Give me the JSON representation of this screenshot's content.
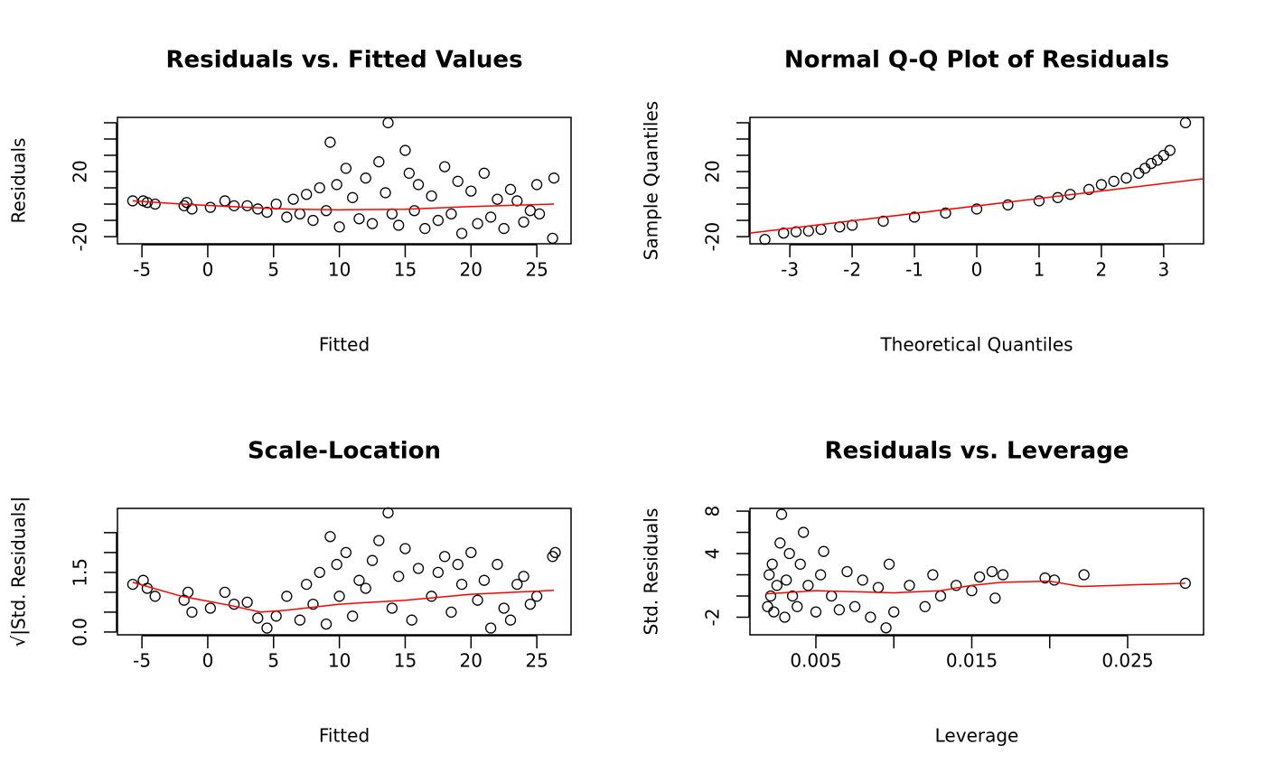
{
  "chart_data": [
    {
      "type": "scatter",
      "title": "Residuals vs. Fitted Values",
      "xlabel": "Fitted",
      "ylabel": "Residuals",
      "xlim": [
        -6.86,
        27.6
      ],
      "ylim": [
        -24.4,
        53.3
      ],
      "xticks": [
        -5,
        0,
        5,
        10,
        15,
        20,
        25
      ],
      "yticks": [
        -20,
        {
          "value": -10,
          "label": null
        },
        {
          "value": 0,
          "label": null
        },
        {
          "value": 10,
          "label": null
        },
        20,
        {
          "value": 30,
          "label": null
        },
        {
          "value": 40,
          "label": null
        },
        {
          "value": 50,
          "label": null
        }
      ],
      "color": "black",
      "x": [
        -5.7,
        -4.9,
        -4.6,
        -4,
        -1.8,
        -1.6,
        -1.2,
        0.2,
        1.3,
        2,
        3,
        3.8,
        4.5,
        5.2,
        6,
        6.5,
        7,
        7.5,
        8,
        8.5,
        9,
        9.3,
        9.8,
        10,
        10.5,
        11,
        11.5,
        12,
        12.5,
        13,
        13.5,
        13.7,
        14,
        14.5,
        15,
        15.3,
        15.7,
        16,
        16.5,
        17,
        17.5,
        18,
        18.5,
        19,
        19.3,
        20,
        20.5,
        21,
        21.5,
        22,
        22.5,
        23,
        23.5,
        24,
        24.5,
        25,
        25.2,
        26.2,
        26.3
      ],
      "values": [
        2,
        2,
        1,
        0,
        -1,
        1,
        -3,
        -2,
        2,
        -1,
        -1,
        -3,
        -5,
        0,
        -8,
        3,
        -6,
        6,
        -10,
        10,
        -4,
        38,
        12,
        -14,
        22,
        4,
        -9,
        16,
        -12,
        26,
        7,
        50,
        -6,
        -13,
        33,
        19,
        -4,
        12,
        -15,
        5,
        -10,
        23,
        -6,
        14,
        -18,
        8,
        -12,
        19,
        -8,
        3,
        -15,
        9,
        2,
        -11,
        -4,
        12,
        -6,
        -21,
        16
      ],
      "line": {
        "color": "red",
        "x": [
          -5.7,
          -2,
          3,
          6,
          10,
          15,
          20,
          26.3
        ],
        "values": [
          2,
          0,
          -2,
          -3,
          -3.5,
          -3.2,
          -1.5,
          0
        ]
      }
    },
    {
      "type": "scatter",
      "title": "Normal Q-Q Plot of Residuals",
      "xlabel": "Theoretical Quantiles",
      "ylabel": "Sample Quantiles",
      "xlim": [
        -3.64,
        3.64
      ],
      "ylim": [
        -24.4,
        53.3
      ],
      "xticks": [
        -3,
        -2,
        -1,
        0,
        1,
        2,
        3
      ],
      "yticks": [
        -20,
        {
          "value": -10,
          "label": null
        },
        {
          "value": 0,
          "label": null
        },
        {
          "value": 10,
          "label": null
        },
        20,
        {
          "value": 30,
          "label": null
        },
        {
          "value": 40,
          "label": null
        },
        {
          "value": 50,
          "label": null
        }
      ],
      "color": "black",
      "x": [
        -3.4,
        -3.1,
        -2.9,
        -2.7,
        -2.5,
        -2.2,
        -2,
        -1.5,
        -1,
        -0.5,
        0,
        0.5,
        1,
        1.3,
        1.5,
        1.8,
        2,
        2.2,
        2.4,
        2.6,
        2.7,
        2.8,
        2.9,
        3,
        3.1,
        3.35
      ],
      "values": [
        -21.7,
        -17.8,
        -17,
        -16.5,
        -15.5,
        -14,
        -13,
        -10.5,
        -8,
        -5.5,
        -3,
        -0.5,
        2,
        4,
        6,
        9,
        12,
        14,
        16,
        19,
        22,
        25,
        27,
        30,
        33,
        50
      ],
      "line": {
        "color": "red",
        "x": [
          -3.64,
          3.64
        ],
        "values": [
          -17.8,
          15.6
        ]
      }
    },
    {
      "type": "scatter",
      "title": "Scale-Location",
      "xlabel": "Fitted",
      "ylabel": "√|Std. Residuals|",
      "xlim": [
        -6.86,
        27.6
      ],
      "ylim": [
        -0.07,
        3.11
      ],
      "xticks": [
        -5,
        0,
        5,
        10,
        15,
        20,
        25
      ],
      "yticks": [
        {
          "value": 0,
          "label": "0.0"
        },
        {
          "value": 0.5,
          "label": null
        },
        {
          "value": 1,
          "label": null
        },
        1.5,
        {
          "value": 2,
          "label": null
        },
        {
          "value": 2.5,
          "label": null
        }
      ],
      "color": "black",
      "x": [
        -5.7,
        -4.9,
        -4.6,
        -4,
        -1.8,
        -1.5,
        -1.2,
        0.2,
        1.3,
        2,
        3,
        3.8,
        4.5,
        5.2,
        6,
        7,
        7.5,
        8,
        8.5,
        9,
        9.3,
        9.8,
        10,
        10.5,
        11,
        11.5,
        12,
        12.5,
        13,
        13.7,
        14,
        14.5,
        15,
        15.5,
        16,
        17,
        17.5,
        18,
        18.5,
        19,
        19.3,
        20,
        20.5,
        21,
        21.5,
        22,
        22.5,
        23,
        23.5,
        24,
        24.5,
        25,
        26.2,
        26.4
      ],
      "values": [
        1.2,
        1.3,
        1.1,
        0.9,
        0.8,
        1,
        0.5,
        0.6,
        1,
        0.7,
        0.75,
        0.35,
        0.1,
        0.4,
        0.9,
        0.3,
        1.2,
        0.7,
        1.5,
        0.2,
        2.4,
        1.7,
        0.9,
        2,
        0.4,
        1.3,
        1.1,
        1.8,
        2.3,
        3,
        0.6,
        1.4,
        2.1,
        0.3,
        1.6,
        0.9,
        1.5,
        1.9,
        0.5,
        1.7,
        1.2,
        2,
        0.8,
        1.3,
        0.1,
        1.7,
        0.6,
        0.3,
        1.2,
        1.4,
        0.7,
        0.9,
        1.9,
        2
      ],
      "line": {
        "color": "red",
        "x": [
          -5.7,
          -2,
          2,
          4,
          6,
          10,
          15,
          20,
          26.3
        ],
        "values": [
          1.25,
          0.9,
          0.65,
          0.5,
          0.55,
          0.7,
          0.8,
          0.95,
          1.05
        ]
      }
    },
    {
      "type": "scatter",
      "title": "Residuals vs. Leverage",
      "xlabel": "Leverage",
      "ylabel": "Std. Residuals",
      "xlim": [
        0.00077,
        0.02987
      ],
      "ylim": [
        -3.66,
        8.26
      ],
      "xticks": [
        0.005,
        {
          "value": 0.01,
          "label": null
        },
        0.015,
        {
          "value": 0.02,
          "label": null
        },
        0.025
      ],
      "yticks": [
        -2,
        {
          "value": 0,
          "label": null
        },
        {
          "value": 2,
          "label": null
        },
        4,
        {
          "value": 6,
          "label": null
        },
        8
      ],
      "color": "black",
      "x": [
        0.0019,
        0.002,
        0.0021,
        0.0022,
        0.0023,
        0.0025,
        0.0027,
        0.0028,
        0.003,
        0.0031,
        0.0033,
        0.0035,
        0.0038,
        0.004,
        0.0042,
        0.0045,
        0.005,
        0.0053,
        0.0055,
        0.006,
        0.0065,
        0.007,
        0.0075,
        0.008,
        0.0085,
        0.009,
        0.0095,
        0.0097,
        0.01,
        0.011,
        0.012,
        0.0125,
        0.013,
        0.014,
        0.015,
        0.0155,
        0.0163,
        0.0165,
        0.017,
        0.0197,
        0.0203,
        0.0222,
        0.0287
      ],
      "values": [
        -1,
        2,
        0,
        3,
        -1.5,
        1,
        5,
        7.7,
        -2,
        1.5,
        4,
        0,
        -1,
        3,
        6,
        1,
        -1.5,
        2,
        4.2,
        0,
        -1.3,
        2.3,
        -1,
        1.5,
        -2,
        0.8,
        -3,
        3,
        -1.5,
        1,
        -1,
        2,
        0,
        1,
        0.5,
        1.8,
        2.3,
        -0.2,
        2,
        1.7,
        1.5,
        2,
        1.2
      ],
      "line": {
        "color": "red",
        "x": [
          0.0018,
          0.005,
          0.01,
          0.013,
          0.015,
          0.017,
          0.02,
          0.022,
          0.0287
        ],
        "values": [
          0.2,
          0.5,
          0.3,
          0.5,
          1,
          1.3,
          1.4,
          0.9,
          1.2
        ]
      }
    }
  ]
}
